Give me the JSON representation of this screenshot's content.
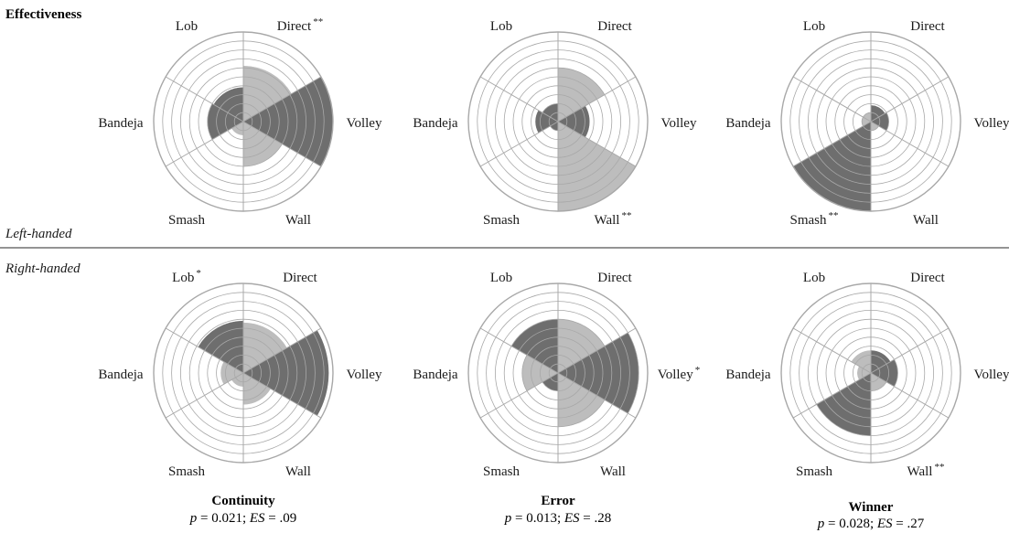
{
  "figure": {
    "heading": "Effectiveness",
    "groups": {
      "top": "Left-handed",
      "bottom": "Right-handed"
    },
    "columns": [
      {
        "title": "Continuity",
        "p_label": "p",
        "p_value": " = 0.021; ",
        "es_label": "ES",
        "es_value": " = .09"
      },
      {
        "title": "Error",
        "p_label": "p",
        "p_value": " = 0.013; ",
        "es_label": "ES",
        "es_value": " = .28"
      },
      {
        "title": "Winner",
        "p_label": "p",
        "p_value": " = 0.028; ",
        "es_label": "ES",
        "es_value": " = .27"
      }
    ]
  },
  "colors": {
    "dark": "#6e6e6e",
    "light": "#bdbdbd",
    "grid": "#a8a8a8",
    "rule": "#555555"
  },
  "chart_data": [
    {
      "type": "polar-area",
      "group": "Left-handed",
      "column": "Continuity",
      "rings": 10,
      "categories": [
        "Direct",
        "Volley",
        "Wall",
        "Smash",
        "Bandeja",
        "Lob"
      ],
      "sig": [
        "**",
        "",
        "",
        "",
        "",
        ""
      ],
      "values": [
        6.2,
        10,
        5,
        1.5,
        4,
        3.8
      ],
      "shades": [
        "light",
        "dark",
        "light",
        "light",
        "dark",
        "dark"
      ]
    },
    {
      "type": "polar-area",
      "group": "Left-handed",
      "column": "Error",
      "rings": 10,
      "categories": [
        "Direct",
        "Volley",
        "Wall",
        "Smash",
        "Bandeja",
        "Lob"
      ],
      "sig": [
        "",
        "",
        "**",
        "",
        "",
        ""
      ],
      "values": [
        6,
        3.5,
        10,
        1,
        2.5,
        2
      ],
      "shades": [
        "light",
        "dark",
        "light",
        "dark",
        "dark",
        "dark"
      ]
    },
    {
      "type": "polar-area",
      "group": "Left-handed",
      "column": "Winner",
      "rings": 10,
      "categories": [
        "Direct",
        "Volley",
        "Wall",
        "Smash",
        "Bandeja",
        "Lob"
      ],
      "sig": [
        "",
        "",
        "",
        "**",
        "",
        ""
      ],
      "values": [
        1.8,
        2,
        1,
        10,
        1,
        1
      ],
      "shades": [
        "dark",
        "dark",
        "light",
        "dark",
        "light",
        "light"
      ]
    },
    {
      "type": "polar-area",
      "group": "Right-handed",
      "column": "Continuity",
      "rings": 10,
      "categories": [
        "Direct",
        "Volley",
        "Wall",
        "Smash",
        "Bandeja",
        "Lob"
      ],
      "sig": [
        "",
        "",
        "",
        "",
        "",
        "*"
      ],
      "values": [
        5.6,
        9.5,
        3.5,
        1.5,
        2.5,
        5.8
      ],
      "shades": [
        "light",
        "dark",
        "light",
        "light",
        "light",
        "dark"
      ]
    },
    {
      "type": "polar-area",
      "group": "Right-handed",
      "column": "Error",
      "rings": 10,
      "categories": [
        "Direct",
        "Volley",
        "Wall",
        "Smash",
        "Bandeja",
        "Lob"
      ],
      "sig": [
        "",
        "*",
        "",
        "",
        "",
        ""
      ],
      "values": [
        6,
        9,
        6,
        2,
        4,
        6
      ],
      "shades": [
        "light",
        "dark",
        "light",
        "dark",
        "light",
        "dark"
      ]
    },
    {
      "type": "polar-area",
      "group": "Right-handed",
      "column": "Winner",
      "rings": 10,
      "categories": [
        "Direct",
        "Volley",
        "Wall",
        "Smash",
        "Bandeja",
        "Lob"
      ],
      "sig": [
        "",
        "",
        "**",
        "",
        "",
        ""
      ],
      "values": [
        2.5,
        3,
        2,
        7,
        1.5,
        2.5
      ],
      "shades": [
        "dark",
        "dark",
        "light",
        "dark",
        "light",
        "light"
      ]
    }
  ]
}
